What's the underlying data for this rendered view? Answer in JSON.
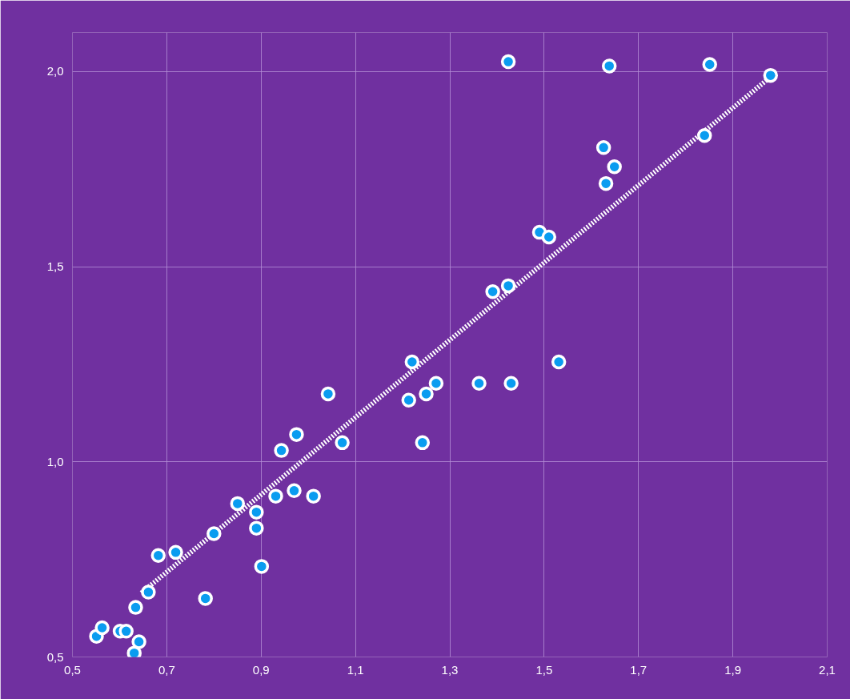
{
  "chart_data": {
    "type": "scatter",
    "xlim": [
      0.5,
      2.1
    ],
    "ylim": [
      0.5,
      2.1
    ],
    "xticks": [
      {
        "value": 0.5,
        "label": "0,5"
      },
      {
        "value": 0.7,
        "label": "0,7"
      },
      {
        "value": 0.9,
        "label": "0,9"
      },
      {
        "value": 1.1,
        "label": "1,1"
      },
      {
        "value": 1.3,
        "label": "1,3"
      },
      {
        "value": 1.5,
        "label": "1,5"
      },
      {
        "value": 1.7,
        "label": "1,7"
      },
      {
        "value": 1.9,
        "label": "1,9"
      },
      {
        "value": 2.1,
        "label": "2,1"
      }
    ],
    "yticks": [
      {
        "value": 0.5,
        "label": "0,5"
      },
      {
        "value": 1.0,
        "label": "1,0"
      },
      {
        "value": 1.5,
        "label": "1,5"
      },
      {
        "value": 2.0,
        "label": "2,0"
      }
    ],
    "grid": true,
    "series": [
      {
        "marker": "circle",
        "color": "#0a9cf0",
        "x": [
          0.551,
          0.563,
          0.601,
          0.614,
          0.641,
          0.631,
          0.634,
          0.661,
          0.682,
          0.719,
          0.782,
          0.8,
          0.85,
          0.89,
          0.89,
          0.901,
          0.931,
          0.943,
          0.97,
          0.975,
          1.011,
          1.042,
          1.072,
          1.213,
          1.22,
          1.242,
          1.25,
          1.271,
          1.362,
          1.391,
          1.424,
          1.43,
          1.424,
          1.49,
          1.51,
          1.531,
          1.626,
          1.631,
          1.649,
          1.638,
          1.84,
          1.851,
          1.98
        ],
        "values": [
          0.553,
          0.575,
          0.566,
          0.566,
          0.539,
          0.51,
          0.627,
          0.666,
          0.76,
          0.768,
          0.65,
          0.816,
          0.893,
          0.871,
          0.83,
          0.732,
          0.912,
          1.029,
          0.926,
          1.07,
          0.912,
          1.174,
          1.049,
          1.158,
          1.256,
          1.049,
          1.174,
          1.201,
          1.201,
          1.436,
          1.451,
          1.201,
          2.025,
          1.588,
          1.576,
          1.256,
          1.805,
          1.713,
          1.756,
          2.014,
          1.836,
          2.018,
          1.99
        ]
      },
      {
        "type": "line",
        "color": "#ffffff",
        "line_style": "dotted",
        "marker": "none",
        "x": [
          0.646,
          1.98
        ],
        "values": [
          0.664,
          1.986
        ]
      }
    ]
  }
}
